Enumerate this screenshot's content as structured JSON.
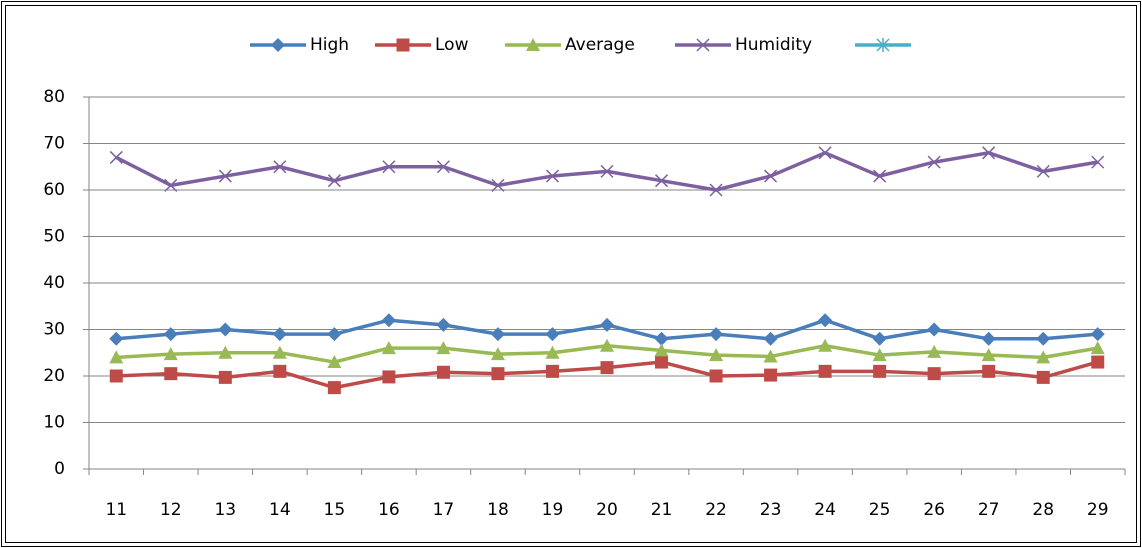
{
  "chart_data": {
    "type": "line",
    "categories": [
      11,
      12,
      13,
      14,
      15,
      16,
      17,
      18,
      19,
      20,
      21,
      22,
      23,
      24,
      25,
      26,
      27,
      28,
      29
    ],
    "series": [
      {
        "name": "High",
        "color": "#4a7ebb",
        "marker": "diamond",
        "values": [
          28,
          29,
          30,
          29,
          29,
          32,
          31,
          29,
          29,
          31,
          28,
          29,
          28,
          32,
          28,
          30,
          28,
          28,
          29
        ]
      },
      {
        "name": "Low",
        "color": "#be4b48",
        "marker": "square",
        "values": [
          20,
          20.5,
          19.7,
          21,
          17.5,
          19.8,
          20.8,
          20.5,
          21,
          21.8,
          23,
          20,
          20.2,
          21,
          21,
          20.5,
          21,
          19.7,
          23
        ]
      },
      {
        "name": "Average",
        "color": "#98b954",
        "marker": "triangle",
        "values": [
          24,
          24.7,
          25,
          25,
          23,
          26,
          26,
          24.7,
          25,
          26.5,
          25.5,
          24.5,
          24.2,
          26.5,
          24.5,
          25.2,
          24.5,
          24,
          26
        ]
      },
      {
        "name": "Humidity",
        "color": "#7d60a0",
        "marker": "x",
        "values": [
          67,
          61,
          63,
          65,
          62,
          65,
          65,
          61,
          63,
          64,
          62,
          60,
          63,
          68,
          63,
          66,
          68,
          64,
          66
        ]
      },
      {
        "color": "#4bacc6",
        "marker": "asterisk",
        "values": [
          null,
          null,
          null,
          null,
          null,
          null,
          null,
          null,
          null,
          null,
          null,
          null,
          null,
          null,
          null,
          null,
          null,
          null,
          null
        ]
      }
    ],
    "ylim": [
      0,
      80
    ],
    "yticks": [
      0,
      10,
      20,
      30,
      40,
      50,
      60,
      70,
      80
    ],
    "grid": true,
    "legend": "top"
  }
}
